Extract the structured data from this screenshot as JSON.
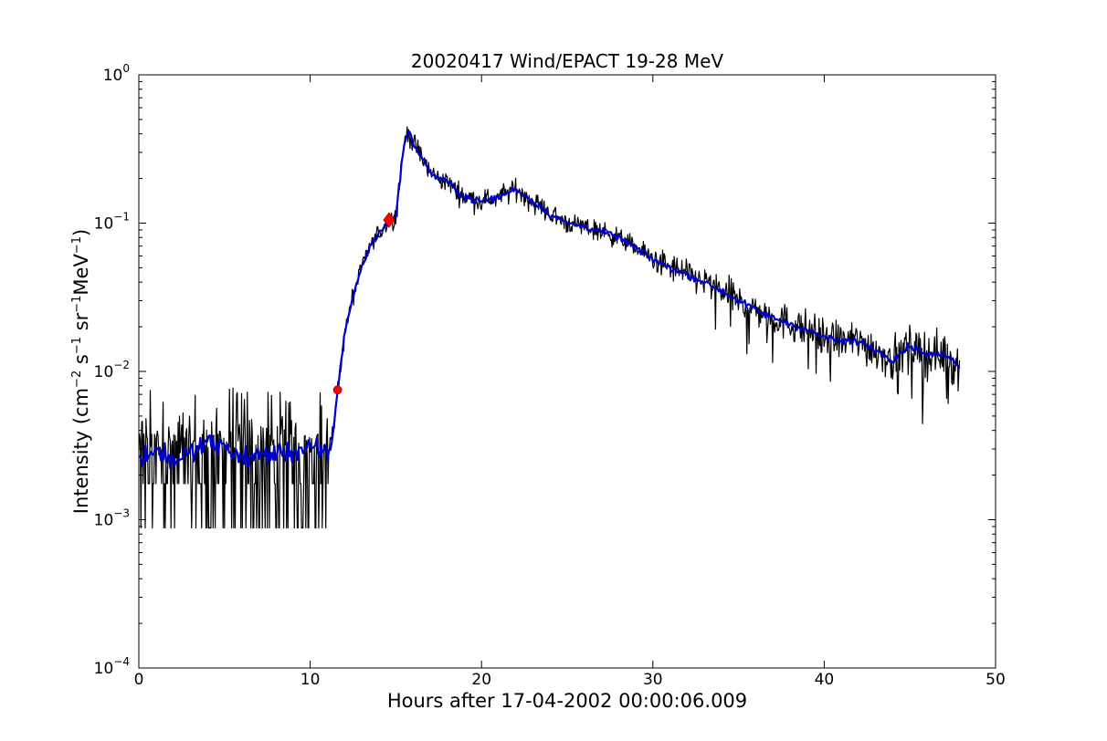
{
  "chart_data": {
    "type": "line",
    "title": "20020417 Wind/EPACT 19-28 MeV",
    "xlabel": "Hours after 17-04-2002 00:00:06.009",
    "ylabel": {
      "prefix": "Intensity (cm",
      "exp1": "−2",
      "s": " s",
      "exp2": "−1",
      "sr": " sr",
      "exp3": "−1",
      "mev": "MeV",
      "exp4": "−1",
      "suffix": ")"
    },
    "xlim": [
      0,
      50
    ],
    "ylim": [
      0.0001,
      1
    ],
    "y_scale": "log",
    "grid": false,
    "x_ticks": [
      0,
      10,
      20,
      30,
      40,
      50
    ],
    "y_ticks": [
      {
        "value": 0.0001,
        "base": "10",
        "exp": "−4"
      },
      {
        "value": 0.001,
        "base": "10",
        "exp": "−3"
      },
      {
        "value": 0.01,
        "base": "10",
        "exp": "−2"
      },
      {
        "value": 0.1,
        "base": "10",
        "exp": "−1"
      },
      {
        "value": 1,
        "base": "10",
        "exp": "0"
      }
    ],
    "series": [
      {
        "color": "#000000",
        "style": "raw",
        "x": [
          0.0,
          1.0,
          2.0,
          3.0,
          4.0,
          5.0,
          6.0,
          7.0,
          8.0,
          9.0,
          10.0,
          11.0,
          11.3,
          11.6,
          12.0,
          12.5,
          13.0,
          13.5,
          14.0,
          14.5,
          15.0,
          15.4,
          15.7,
          16.0,
          16.5,
          17.0,
          17.5,
          18.0,
          19.0,
          20.0,
          21.0,
          22.0,
          23.0,
          24.0,
          25.0,
          26.0,
          27.0,
          28.0,
          29.0,
          30.0,
          31.0,
          32.0,
          33.0,
          34.0,
          35.0,
          36.0,
          37.0,
          38.0,
          39.0,
          40.0,
          41.0,
          42.0,
          43.0,
          44.0,
          45.0,
          46.0,
          47.0,
          47.9
        ],
        "y": [
          0.0026,
          0.003,
          0.0025,
          0.0028,
          0.0033,
          0.0031,
          0.0026,
          0.0027,
          0.0028,
          0.0029,
          0.003,
          0.0028,
          0.0035,
          0.0074,
          0.018,
          0.032,
          0.05,
          0.07,
          0.085,
          0.1,
          0.11,
          0.3,
          0.42,
          0.35,
          0.28,
          0.22,
          0.2,
          0.19,
          0.15,
          0.14,
          0.15,
          0.17,
          0.14,
          0.115,
          0.1,
          0.095,
          0.088,
          0.08,
          0.068,
          0.057,
          0.05,
          0.045,
          0.04,
          0.035,
          0.03,
          0.026,
          0.023,
          0.021,
          0.019,
          0.017,
          0.016,
          0.016,
          0.014,
          0.012,
          0.015,
          0.013,
          0.013,
          0.011
        ]
      },
      {
        "color": "#0000cc",
        "style": "smoothed",
        "x": [
          0.0,
          1.0,
          2.0,
          3.0,
          4.0,
          5.0,
          6.0,
          7.0,
          8.0,
          9.0,
          10.0,
          11.0,
          11.3,
          11.6,
          12.0,
          12.5,
          13.0,
          13.5,
          14.0,
          14.5,
          15.0,
          15.4,
          15.7,
          16.0,
          16.5,
          17.0,
          17.5,
          18.0,
          19.0,
          20.0,
          21.0,
          22.0,
          23.0,
          24.0,
          25.0,
          26.0,
          27.0,
          28.0,
          29.0,
          30.0,
          31.0,
          32.0,
          33.0,
          34.0,
          35.0,
          36.0,
          37.0,
          38.0,
          39.0,
          40.0,
          41.0,
          42.0,
          43.0,
          44.0,
          45.0,
          46.0,
          47.0,
          47.9
        ],
        "y": [
          0.0026,
          0.003,
          0.0025,
          0.0028,
          0.0033,
          0.0031,
          0.0026,
          0.0027,
          0.0028,
          0.0029,
          0.003,
          0.0028,
          0.0035,
          0.0074,
          0.018,
          0.032,
          0.05,
          0.07,
          0.085,
          0.1,
          0.11,
          0.3,
          0.42,
          0.35,
          0.28,
          0.22,
          0.2,
          0.19,
          0.15,
          0.14,
          0.15,
          0.17,
          0.14,
          0.115,
          0.1,
          0.095,
          0.088,
          0.08,
          0.068,
          0.057,
          0.05,
          0.045,
          0.04,
          0.035,
          0.03,
          0.026,
          0.023,
          0.021,
          0.019,
          0.017,
          0.016,
          0.016,
          0.014,
          0.012,
          0.015,
          0.013,
          0.013,
          0.011
        ]
      }
    ],
    "markers": [
      {
        "x": 11.6,
        "y": 0.0075,
        "color": "#ff0000",
        "shape": "circle"
      },
      {
        "x": 14.6,
        "y": 0.105,
        "color": "#ff0000",
        "shape": "diamond"
      }
    ]
  }
}
